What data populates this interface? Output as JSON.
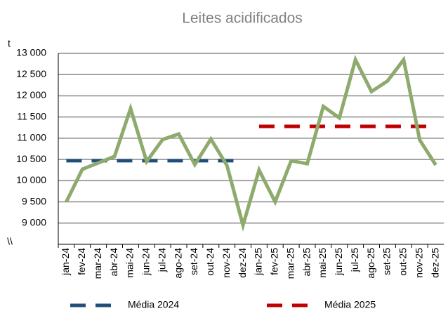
{
  "chart_data": {
    "type": "line",
    "title": "Leites acidificados",
    "y_unit": "t",
    "y_break": "\\\\",
    "categories": [
      "jan-24",
      "fev-24",
      "mar-24",
      "abr-24",
      "mai-24",
      "jun-24",
      "jul-24",
      "ago-24",
      "set-24",
      "out-24",
      "nov-24",
      "dez-24",
      "jan-25",
      "fev-25",
      "mar-25",
      "abr-25",
      "mai-25",
      "jun-25",
      "jul-25",
      "ago-25",
      "set-25",
      "out-25",
      "nov-25",
      "dez-25"
    ],
    "values": [
      9500,
      10270,
      10420,
      10570,
      11700,
      10450,
      10970,
      11100,
      10380,
      10980,
      10360,
      8950,
      10250,
      9500,
      10470,
      10400,
      11750,
      11480,
      12850,
      12100,
      12350,
      12850,
      10960,
      10370
    ],
    "color": "#8eaa6c",
    "series": [
      {
        "name": "Média 2024",
        "color": "#1f4e79",
        "values": [
          10470,
          10470,
          10470,
          10470,
          10470,
          10470,
          10470,
          10470,
          10470,
          10470,
          10470,
          10470,
          null,
          null,
          null,
          null,
          null,
          null,
          null,
          null,
          null,
          null,
          null,
          null
        ]
      },
      {
        "name": "Média 2025",
        "color": "#c00000",
        "values": [
          null,
          null,
          null,
          null,
          null,
          null,
          null,
          null,
          null,
          null,
          null,
          null,
          11280,
          11280,
          11280,
          11280,
          11280,
          11280,
          11280,
          11280,
          11280,
          11280,
          11280,
          11280
        ]
      }
    ],
    "ylim": [
      8500,
      13000
    ],
    "yticks": [
      {
        "value": 9000,
        "label": "9 000"
      },
      {
        "value": 9500,
        "label": "9 500"
      },
      {
        "value": 10000,
        "label": "10 000"
      },
      {
        "value": 10500,
        "label": "10 500"
      },
      {
        "value": 11000,
        "label": "11 000"
      },
      {
        "value": 11500,
        "label": "11 500"
      },
      {
        "value": 12000,
        "label": "12 000"
      },
      {
        "value": 12500,
        "label": "12 500"
      },
      {
        "value": 13000,
        "label": "13 000"
      }
    ],
    "grid": true
  }
}
